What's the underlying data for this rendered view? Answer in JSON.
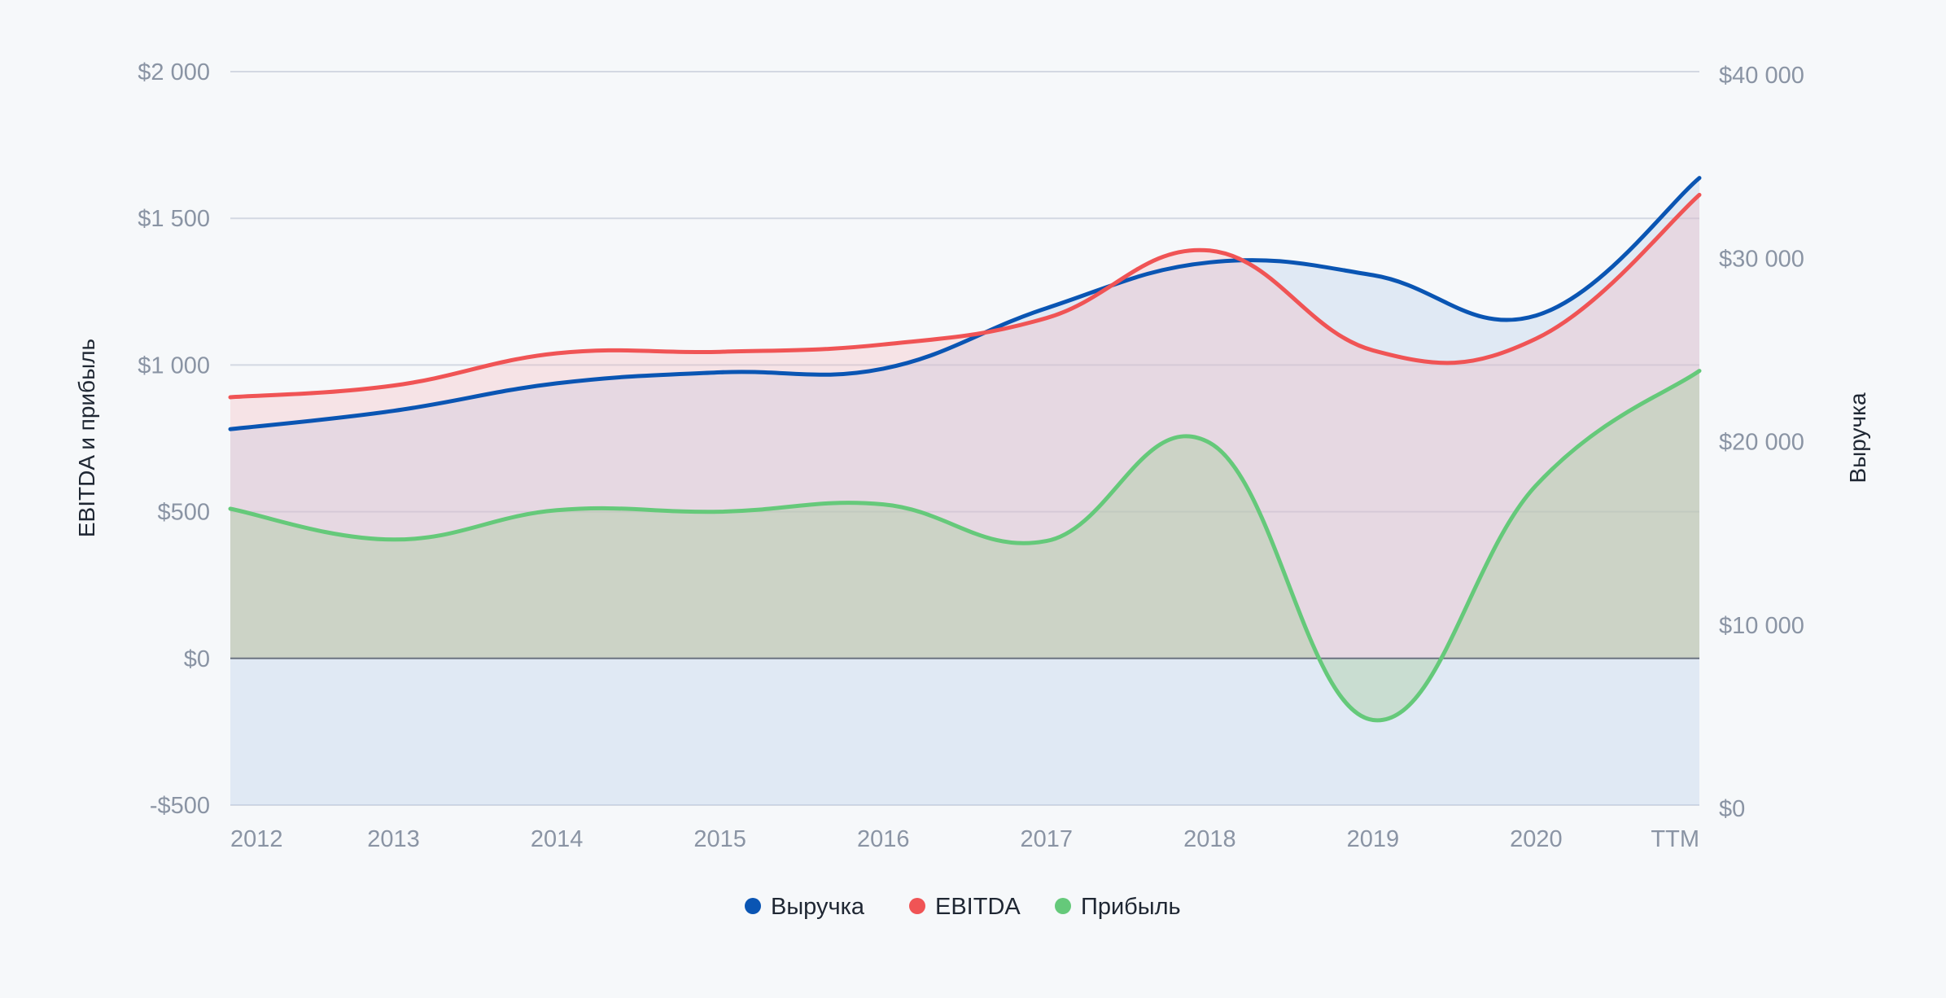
{
  "chart_data": {
    "type": "area",
    "categories": [
      "2012",
      "2013",
      "2014",
      "2015",
      "2016",
      "2017",
      "2018",
      "2019",
      "2020",
      "TTM"
    ],
    "left_axis": {
      "label": "EBITDA и прибыль",
      "range": [
        -500,
        2000
      ],
      "ticks": [
        {
          "value": 2000,
          "label": "$2 000"
        },
        {
          "value": 1500,
          "label": "$1 500"
        },
        {
          "value": 1000,
          "label": "$1 000"
        },
        {
          "value": 500,
          "label": "$500"
        },
        {
          "value": 0,
          "label": "$0"
        },
        {
          "value": -500,
          "label": "-$500"
        }
      ]
    },
    "right_axis": {
      "label": "Выручка",
      "range": [
        0,
        40000
      ],
      "ticks": [
        {
          "value": 40000,
          "label": "$40 000"
        },
        {
          "value": 30000,
          "label": "$30 000"
        },
        {
          "value": 20000,
          "label": "$20 000"
        },
        {
          "value": 10000,
          "label": "$10 000"
        },
        {
          "value": 0,
          "label": "$0"
        }
      ]
    },
    "series": [
      {
        "name": "Выручка",
        "axis": "right",
        "color": "#0a55b3",
        "fill": "rgba(176,202,232,0.32)",
        "values": [
          20500,
          21500,
          23000,
          23600,
          23800,
          27100,
          29600,
          28900,
          26700,
          34200
        ]
      },
      {
        "name": "EBITDA",
        "axis": "left",
        "color": "#f05455",
        "fill": "rgba(246,180,184,0.30)",
        "values": [
          890,
          930,
          1040,
          1045,
          1070,
          1160,
          1390,
          1050,
          1090,
          1580
        ]
      },
      {
        "name": "Прибыль",
        "axis": "left",
        "color": "#65c97a",
        "fill": "rgba(170,205,160,0.42)",
        "values": [
          510,
          405,
          505,
          500,
          525,
          400,
          735,
          -210,
          590,
          980
        ]
      }
    ],
    "legend_position": "bottom-center",
    "grid": true
  }
}
